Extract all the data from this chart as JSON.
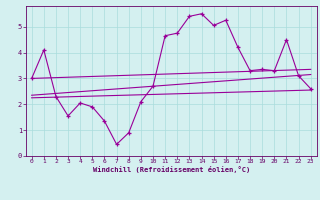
{
  "xlabel": "Windchill (Refroidissement éolien,°C)",
  "background_color": "#d4f0f0",
  "line_color": "#990099",
  "ylim": [
    0,
    5.8
  ],
  "xlim": [
    -0.5,
    23.5
  ],
  "yticks": [
    0,
    1,
    2,
    3,
    4,
    5
  ],
  "xticks": [
    0,
    1,
    2,
    3,
    4,
    5,
    6,
    7,
    8,
    9,
    10,
    11,
    12,
    13,
    14,
    15,
    16,
    17,
    18,
    19,
    20,
    21,
    22,
    23
  ],
  "series1_x": [
    0,
    1,
    2,
    3,
    4,
    5,
    6,
    7,
    8,
    9,
    10,
    11,
    12,
    13,
    14,
    15,
    16,
    17,
    18,
    19,
    20,
    21,
    22,
    23
  ],
  "series1_y": [
    3.0,
    4.1,
    2.3,
    1.55,
    2.05,
    1.9,
    1.35,
    0.45,
    0.9,
    2.1,
    2.7,
    4.65,
    4.75,
    5.4,
    5.5,
    5.05,
    5.25,
    4.2,
    3.3,
    3.35,
    3.3,
    4.5,
    3.1,
    2.6
  ],
  "series2_x": [
    0,
    23
  ],
  "series2_y": [
    3.0,
    3.35
  ],
  "series3_x": [
    0,
    23
  ],
  "series3_y": [
    2.35,
    3.15
  ],
  "series4_x": [
    0,
    23
  ],
  "series4_y": [
    2.25,
    2.55
  ],
  "grid_color": "#aadddd",
  "font_color": "#660066",
  "tick_fontsize": 4.5,
  "xlabel_fontsize": 5.0
}
